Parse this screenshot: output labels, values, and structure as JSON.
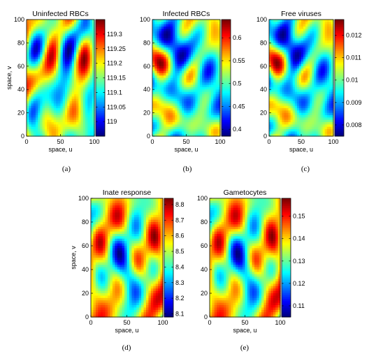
{
  "chart_data": [
    {
      "type": "heatmap",
      "title": "Uninfected RBCs",
      "xlabel": "space, u",
      "ylabel": "space, v",
      "xlim": [
        0,
        100
      ],
      "ylim": [
        0,
        100
      ],
      "xticks": [
        "0",
        "50",
        "100"
      ],
      "yticks": [
        "0",
        "20",
        "40",
        "60",
        "80",
        "100"
      ],
      "colorbar": {
        "range": [
          118.95,
          119.35
        ],
        "ticks": [
          "119",
          "119.05",
          "119.1",
          "119.15",
          "119.2",
          "119.25",
          "119.3"
        ]
      },
      "caption": "(a)",
      "seed": 1
    },
    {
      "type": "heatmap",
      "title": "Infected RBCs",
      "xlabel": "space, u",
      "ylabel": "",
      "xlim": [
        0,
        100
      ],
      "ylim": [
        0,
        100
      ],
      "xticks": [
        "0",
        "50",
        "100"
      ],
      "yticks": [
        "0",
        "20",
        "40",
        "60",
        "80",
        "100"
      ],
      "colorbar": {
        "range": [
          0.385,
          0.64
        ],
        "ticks": [
          "0.4",
          "0.45",
          "0.5",
          "0.55",
          "0.6"
        ]
      },
      "caption": "(b)",
      "seed": 2
    },
    {
      "type": "heatmap",
      "title": "Free viruses",
      "xlabel": "space, u",
      "ylabel": "",
      "xlim": [
        0,
        100
      ],
      "ylim": [
        0,
        100
      ],
      "xticks": [
        "0",
        "50",
        "100"
      ],
      "yticks": [
        "0",
        "20",
        "40",
        "60",
        "80",
        "100"
      ],
      "colorbar": {
        "range": [
          0.0075,
          0.0127
        ],
        "ticks": [
          "0.008",
          "0.009",
          "0.01",
          "0.011",
          "0.012"
        ]
      },
      "caption": "(c)",
      "seed": 2
    },
    {
      "type": "heatmap",
      "title": "Inate response",
      "xlabel": "space, u",
      "ylabel": "space, v",
      "xlim": [
        0,
        100
      ],
      "ylim": [
        0,
        100
      ],
      "xticks": [
        "0",
        "50",
        "100"
      ],
      "yticks": [
        "0",
        "20",
        "40",
        "60",
        "80",
        "100"
      ],
      "colorbar": {
        "range": [
          8.08,
          8.84
        ],
        "ticks": [
          "8.1",
          "8.2",
          "8.3",
          "8.4",
          "8.5",
          "8.6",
          "8.7",
          "8.8"
        ]
      },
      "caption": "(d)",
      "seed": 3
    },
    {
      "type": "heatmap",
      "title": "Gametocytes",
      "xlabel": "space, u",
      "ylabel": "",
      "xlim": [
        0,
        100
      ],
      "ylim": [
        0,
        100
      ],
      "xticks": [
        "0",
        "50",
        "100"
      ],
      "yticks": [
        "0",
        "20",
        "40",
        "60",
        "80",
        "100"
      ],
      "colorbar": {
        "range": [
          0.105,
          0.158
        ],
        "ticks": [
          "0.11",
          "0.12",
          "0.13",
          "0.14",
          "0.15"
        ]
      },
      "caption": "(e)",
      "seed": 3
    }
  ]
}
